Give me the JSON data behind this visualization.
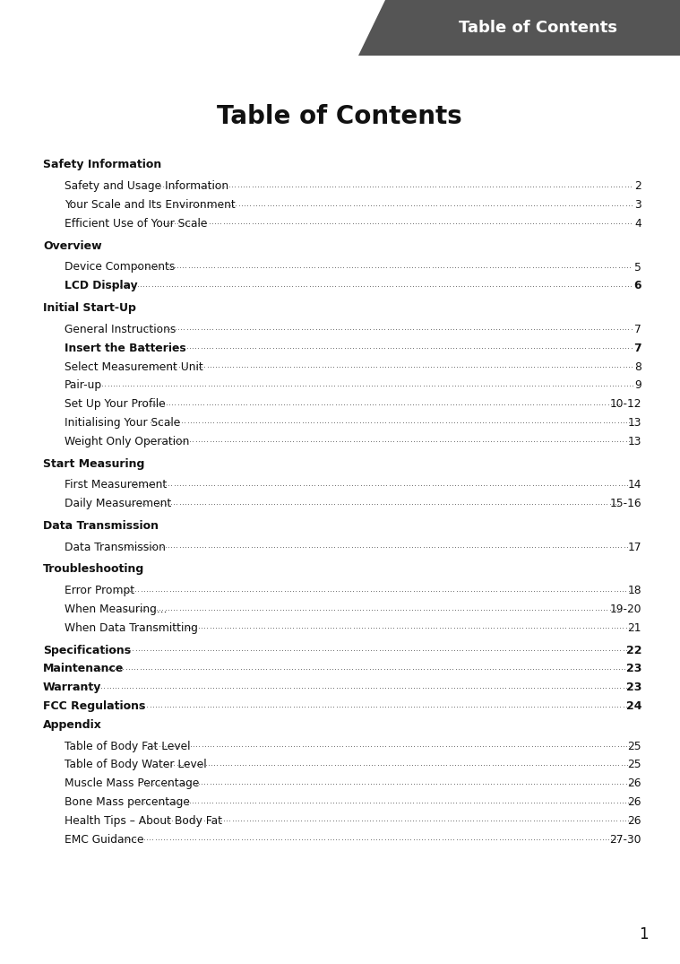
{
  "page_title": "Table of Contents",
  "header_label": "Table of Contents",
  "header_bg": "#555555",
  "header_text_color": "#ffffff",
  "page_bg": "#ffffff",
  "main_title": "Table of Contents",
  "page_number": "1",
  "entries": [
    {
      "text": "Safety Information",
      "level": 0,
      "page": "",
      "bold": true,
      "gap": false
    },
    {
      "text": "Safety and Usage Information",
      "level": 1,
      "page": "2",
      "bold": false,
      "gap": false
    },
    {
      "text": "Your Scale and Its Environment",
      "level": 1,
      "page": "3",
      "bold": false,
      "gap": true
    },
    {
      "text": "Efficient Use of Your Scale",
      "level": 1,
      "page": "4",
      "bold": false,
      "gap": true
    },
    {
      "text": "Overview",
      "level": 0,
      "page": "",
      "bold": true,
      "gap": false
    },
    {
      "text": "Device Components",
      "level": 1,
      "page": "5",
      "bold": false,
      "gap": true
    },
    {
      "text": "LCD Display",
      "level": 1,
      "page": "6",
      "bold": true,
      "gap": false
    },
    {
      "text": "Initial Start-Up",
      "level": 0,
      "page": "",
      "bold": true,
      "gap": false
    },
    {
      "text": "General Instructions",
      "level": 1,
      "page": "7",
      "bold": false,
      "gap": true
    },
    {
      "text": "Insert the Batteries",
      "level": 1,
      "page": "7",
      "bold": true,
      "gap": true
    },
    {
      "text": "Select Measurement Unit",
      "level": 1,
      "page": "8",
      "bold": false,
      "gap": false
    },
    {
      "text": "Pair-up",
      "level": 1,
      "page": "9",
      "bold": false,
      "gap": true
    },
    {
      "text": "Set Up Your Profile",
      "level": 1,
      "page": "10-12",
      "bold": false,
      "gap": true
    },
    {
      "text": "Initialising Your Scale",
      "level": 1,
      "page": "13",
      "bold": false,
      "gap": true
    },
    {
      "text": "Weight Only Operation",
      "level": 1,
      "page": "13",
      "bold": false,
      "gap": true
    },
    {
      "text": "Start Measuring",
      "level": 0,
      "page": "",
      "bold": true,
      "gap": false
    },
    {
      "text": "First Measurement",
      "level": 1,
      "page": "14",
      "bold": false,
      "gap": true
    },
    {
      "text": "Daily Measurement",
      "level": 1,
      "page": "15-16",
      "bold": false,
      "gap": false
    },
    {
      "text": "Data Transmission",
      "level": 0,
      "page": "",
      "bold": true,
      "gap": false
    },
    {
      "text": "Data Transmission",
      "level": 1,
      "page": "17",
      "bold": false,
      "gap": false
    },
    {
      "text": "Troubleshooting",
      "level": 0,
      "page": "",
      "bold": true,
      "gap": false
    },
    {
      "text": "Error Prompt",
      "level": 1,
      "page": "18",
      "bold": false,
      "gap": true
    },
    {
      "text": "When Measuring...",
      "level": 1,
      "page": "19-20",
      "bold": false,
      "gap": false
    },
    {
      "text": "When Data Transmitting",
      "level": 1,
      "page": "21",
      "bold": false,
      "gap": false
    },
    {
      "text": "Specifications",
      "level": 0,
      "page": "22",
      "bold": true,
      "gap": true
    },
    {
      "text": "Maintenance",
      "level": 0,
      "page": "23",
      "bold": true,
      "gap": true
    },
    {
      "text": "Warranty",
      "level": 0,
      "page": "23",
      "bold": true,
      "gap": false
    },
    {
      "text": "FCC Regulations",
      "level": 0,
      "page": "24",
      "bold": true,
      "gap": false
    },
    {
      "text": "Appendix",
      "level": 0,
      "page": "",
      "bold": true,
      "gap": false
    },
    {
      "text": "Table of Body Fat Level",
      "level": 1,
      "page": "25",
      "bold": false,
      "gap": true
    },
    {
      "text": "Table of Body Water Level",
      "level": 1,
      "page": "25",
      "bold": false,
      "gap": true
    },
    {
      "text": "Muscle Mass Percentage",
      "level": 1,
      "page": "26",
      "bold": false,
      "gap": false
    },
    {
      "text": "Bone Mass percentage",
      "level": 1,
      "page": "26",
      "bold": false,
      "gap": true
    },
    {
      "text": "Health Tips – About Body Fat",
      "level": 1,
      "page": "26",
      "bold": false,
      "gap": true
    },
    {
      "text": "EMC Guidance",
      "level": 1,
      "page": "27-30",
      "bold": false,
      "gap": true
    }
  ]
}
